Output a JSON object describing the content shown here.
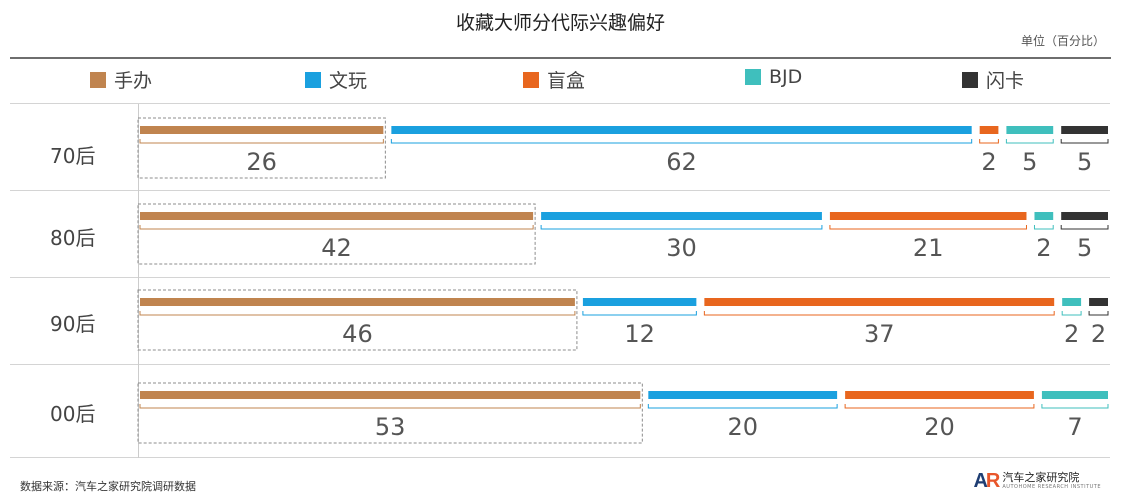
{
  "title": "收藏大师分代际兴趣偏好",
  "unit_label": "单位（百分比）",
  "footer_source": "数据来源：汽车之家研究院调研数据",
  "logo": {
    "mark": "AR",
    "name": "汽车之家研究院",
    "tagline": "AUTOHOME RESEARCH INSTITUTE"
  },
  "colors": {
    "手办": "#c0844f",
    "文玩": "#1aa0df",
    "盲盒": "#e8661e",
    "BJD": "#3fbfbd",
    "闪卡": "#333333"
  },
  "chart_data": {
    "type": "bar",
    "stacked": true,
    "orientation": "horizontal",
    "unit": "百分比",
    "categories": [
      "70后",
      "80后",
      "90后",
      "00后"
    ],
    "series": [
      {
        "name": "手办",
        "values": [
          26,
          42,
          46,
          53
        ]
      },
      {
        "name": "文玩",
        "values": [
          62,
          30,
          12,
          20
        ]
      },
      {
        "name": "盲盒",
        "values": [
          2,
          21,
          37,
          20
        ]
      },
      {
        "name": "BJD",
        "values": [
          5,
          2,
          2,
          7
        ]
      },
      {
        "name": "闪卡",
        "values": [
          5,
          5,
          2,
          null
        ]
      }
    ],
    "highlighted_series": "手办",
    "legend_position": "top",
    "grid": false
  }
}
